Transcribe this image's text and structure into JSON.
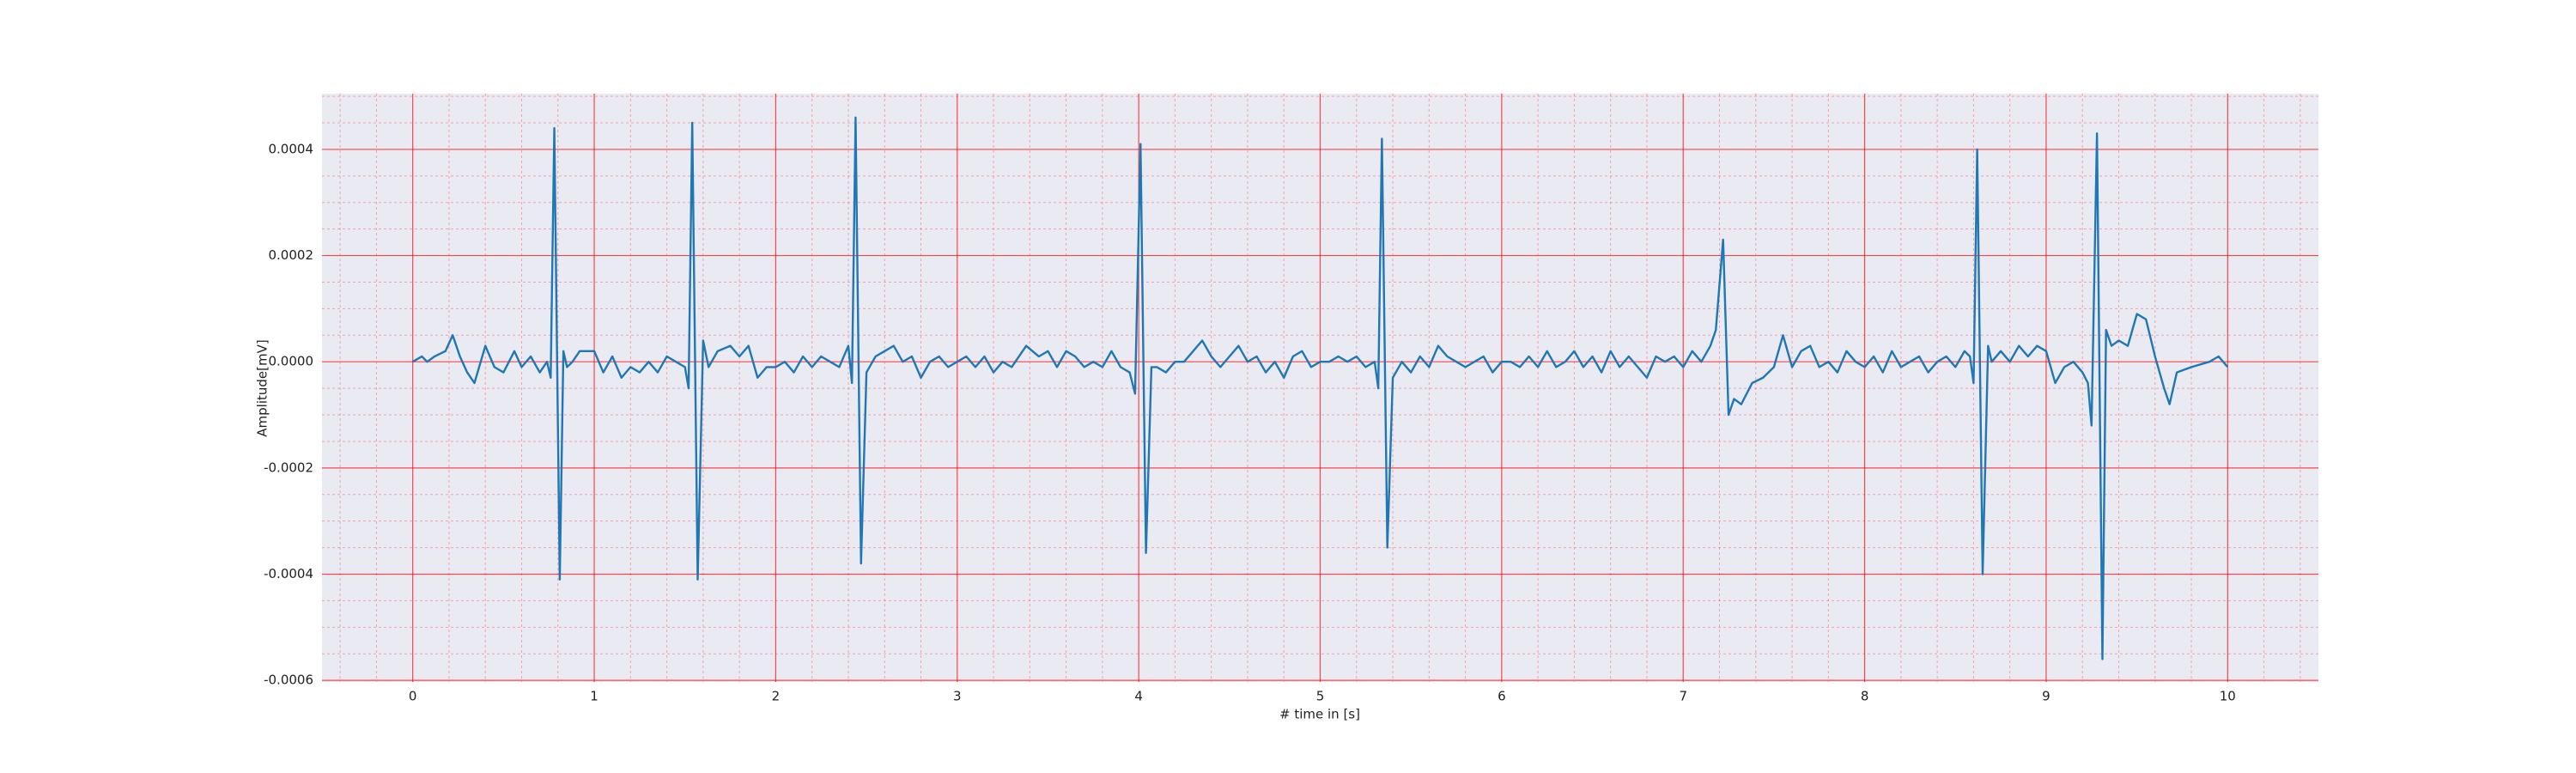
{
  "chart_data": {
    "type": "line",
    "xlabel": "# time in [s]",
    "ylabel": "Amplitude[mV]",
    "x": [
      0,
      0.05,
      0.08,
      0.12,
      0.18,
      0.22,
      0.26,
      0.3,
      0.34,
      0.4,
      0.45,
      0.5,
      0.56,
      0.6,
      0.65,
      0.7,
      0.74,
      0.76,
      0.78,
      0.81,
      0.83,
      0.85,
      0.88,
      0.92,
      1.0,
      1.05,
      1.1,
      1.15,
      1.2,
      1.25,
      1.3,
      1.35,
      1.4,
      1.45,
      1.5,
      1.52,
      1.54,
      1.57,
      1.6,
      1.63,
      1.68,
      1.75,
      1.8,
      1.85,
      1.9,
      1.95,
      2.0,
      2.05,
      2.1,
      2.15,
      2.2,
      2.25,
      2.3,
      2.35,
      2.4,
      2.42,
      2.44,
      2.47,
      2.5,
      2.55,
      2.6,
      2.65,
      2.7,
      2.75,
      2.8,
      2.85,
      2.9,
      2.95,
      3.0,
      3.05,
      3.1,
      3.15,
      3.2,
      3.25,
      3.3,
      3.38,
      3.45,
      3.5,
      3.55,
      3.6,
      3.65,
      3.7,
      3.75,
      3.8,
      3.85,
      3.9,
      3.95,
      3.98,
      4.01,
      4.04,
      4.07,
      4.1,
      4.15,
      4.2,
      4.25,
      4.3,
      4.35,
      4.4,
      4.45,
      4.5,
      4.55,
      4.6,
      4.65,
      4.7,
      4.75,
      4.8,
      4.85,
      4.9,
      4.95,
      5.0,
      5.05,
      5.1,
      5.15,
      5.2,
      5.25,
      5.3,
      5.32,
      5.34,
      5.37,
      5.4,
      5.45,
      5.5,
      5.55,
      5.6,
      5.65,
      5.7,
      5.75,
      5.8,
      5.85,
      5.9,
      5.95,
      6.0,
      6.05,
      6.1,
      6.15,
      6.2,
      6.25,
      6.3,
      6.35,
      6.4,
      6.45,
      6.5,
      6.55,
      6.6,
      6.65,
      6.7,
      6.75,
      6.8,
      6.85,
      6.9,
      6.95,
      7.0,
      7.05,
      7.1,
      7.15,
      7.18,
      7.22,
      7.25,
      7.28,
      7.32,
      7.38,
      7.44,
      7.5,
      7.55,
      7.6,
      7.65,
      7.7,
      7.75,
      7.8,
      7.85,
      7.9,
      7.95,
      8.0,
      8.05,
      8.1,
      8.15,
      8.2,
      8.25,
      8.3,
      8.35,
      8.4,
      8.45,
      8.5,
      8.55,
      8.58,
      8.6,
      8.62,
      8.65,
      8.68,
      8.7,
      8.75,
      8.8,
      8.85,
      8.9,
      8.95,
      9.0,
      9.05,
      9.1,
      9.15,
      9.2,
      9.23,
      9.25,
      9.28,
      9.31,
      9.33,
      9.36,
      9.4,
      9.45,
      9.5,
      9.55,
      9.6,
      9.65,
      9.68,
      9.72,
      9.8,
      9.9,
      9.95,
      10.0
    ],
    "series": [
      {
        "color": "#1f77b4",
        "values": [
          0,
          1e-05,
          0,
          1e-05,
          2e-05,
          5e-05,
          1e-05,
          -2e-05,
          -4e-05,
          3e-05,
          -1e-05,
          -2e-05,
          2e-05,
          -1e-05,
          1e-05,
          -2e-05,
          0,
          -3e-05,
          0.00044,
          -0.00041,
          2e-05,
          -1e-05,
          0,
          2e-05,
          2e-05,
          -2e-05,
          1e-05,
          -3e-05,
          -1e-05,
          -2e-05,
          0,
          -2e-05,
          1e-05,
          0,
          -1e-05,
          -5e-05,
          0.00045,
          -0.00041,
          4e-05,
          -1e-05,
          2e-05,
          3e-05,
          1e-05,
          3e-05,
          -3e-05,
          -1e-05,
          -1e-05,
          0,
          -2e-05,
          1e-05,
          -1e-05,
          1e-05,
          0,
          -1e-05,
          3e-05,
          -4e-05,
          0.00046,
          -0.00038,
          -2e-05,
          1e-05,
          2e-05,
          3e-05,
          0,
          1e-05,
          -3e-05,
          0,
          1e-05,
          -1e-05,
          0,
          1e-05,
          -1e-05,
          1e-05,
          -2e-05,
          0,
          -1e-05,
          3e-05,
          1e-05,
          2e-05,
          -1e-05,
          2e-05,
          1e-05,
          -1e-05,
          0,
          -1e-05,
          2e-05,
          -1e-05,
          -2e-05,
          -6e-05,
          0.00041,
          -0.00036,
          -1e-05,
          -1e-05,
          -2e-05,
          0,
          0,
          2e-05,
          4e-05,
          1e-05,
          -1e-05,
          1e-05,
          3e-05,
          0,
          1e-05,
          -2e-05,
          0,
          -3e-05,
          1e-05,
          2e-05,
          -1e-05,
          0,
          0,
          1e-05,
          0,
          1e-05,
          -1e-05,
          0,
          -5e-05,
          0.00042,
          -0.00035,
          -3e-05,
          0,
          -2e-05,
          1e-05,
          -1e-05,
          3e-05,
          1e-05,
          0,
          -1e-05,
          0,
          1e-05,
          -2e-05,
          0,
          0,
          -1e-05,
          1e-05,
          -1e-05,
          2e-05,
          -1e-05,
          0,
          2e-05,
          -1e-05,
          1e-05,
          -2e-05,
          2e-05,
          -1e-05,
          1e-05,
          -1e-05,
          -3e-05,
          1e-05,
          0,
          1e-05,
          -1e-05,
          2e-05,
          0,
          3e-05,
          6e-05,
          0.00023,
          -0.0001,
          -7e-05,
          -8e-05,
          -4e-05,
          -3e-05,
          -1e-05,
          5e-05,
          -1e-05,
          2e-05,
          3e-05,
          -1e-05,
          0,
          -2e-05,
          2e-05,
          0,
          -1e-05,
          1e-05,
          -2e-05,
          2e-05,
          -1e-05,
          0,
          1e-05,
          -2e-05,
          0,
          1e-05,
          -1e-05,
          2e-05,
          1e-05,
          -4e-05,
          0.0004,
          -0.0004,
          3e-05,
          0,
          2e-05,
          0,
          3e-05,
          1e-05,
          3e-05,
          2e-05,
          -4e-05,
          -1e-05,
          0,
          -2e-05,
          -4e-05,
          -0.00012,
          0.00043,
          -0.00056,
          6e-05,
          3e-05,
          4e-05,
          3e-05,
          9e-05,
          8e-05,
          1e-05,
          -5e-05,
          -8e-05,
          -2e-05,
          -1e-05,
          0,
          1e-05,
          -1e-05
        ]
      }
    ],
    "xlim": [
      -0.5,
      10.5
    ],
    "xticks": [
      0,
      1,
      2,
      3,
      4,
      5,
      6,
      7,
      8,
      9,
      10
    ],
    "ylim": [
      -0.000603,
      0.000505
    ],
    "yticks": [
      -0.0006,
      -0.0004,
      -0.0002,
      {
        "value": 0,
        "label": "0.0000"
      },
      0.0002,
      0.0004
    ],
    "grid": true,
    "minor_grid": true,
    "grid_color": "#ff0000",
    "background": "#eaeaf2"
  }
}
